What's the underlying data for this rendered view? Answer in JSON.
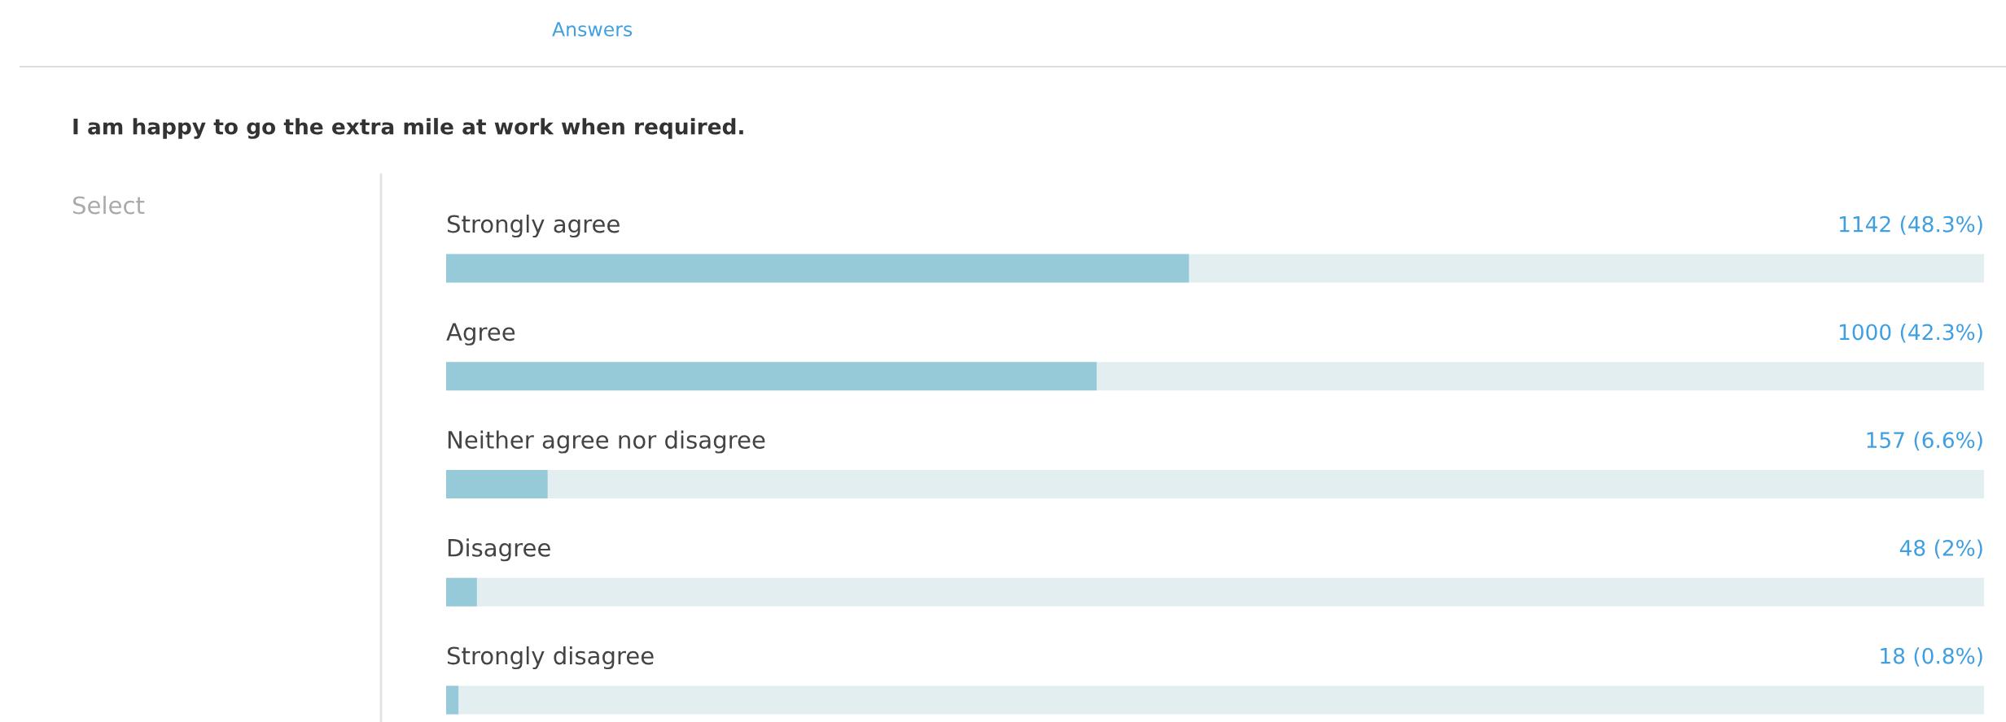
{
  "chart_data": {
    "type": "bar",
    "orientation": "horizontal",
    "title": "I am happy to go the extra mile at work when required.",
    "categories": [
      "Strongly agree",
      "Agree",
      "Neither agree nor disagree",
      "Disagree",
      "Strongly disagree"
    ],
    "values": [
      48.3,
      42.3,
      6.6,
      2.0,
      0.8
    ],
    "value_labels": [
      "1142 (48.3%)",
      "1000 (42.3%)",
      "157 (6.6%)",
      "48 (2%)",
      "18 (0.8%)"
    ],
    "color": "#96cad8",
    "xlim": [
      0,
      100
    ],
    "annotations": [
      "Answers",
      "Select"
    ]
  }
}
